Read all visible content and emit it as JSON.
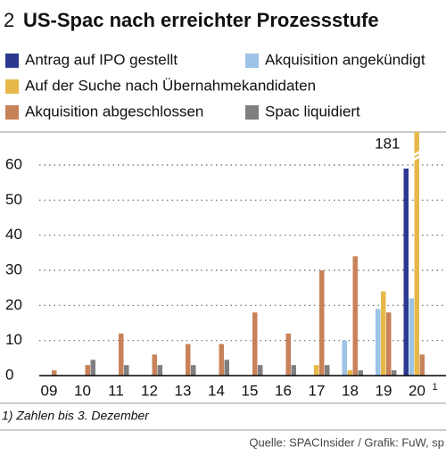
{
  "chart_data": {
    "type": "bar",
    "number": "2",
    "title": "US-Spac nach erreichter Prozessstufe",
    "categories": [
      "09",
      "10",
      "11",
      "12",
      "13",
      "14",
      "15",
      "16",
      "17",
      "18",
      "19",
      "20"
    ],
    "footnote_marker": "1",
    "series": [
      {
        "name": "Antrag auf IPO gestellt",
        "color": "#2b3990",
        "values": [
          0,
          0,
          0,
          0,
          0,
          0,
          0,
          0,
          0,
          0,
          0,
          59
        ]
      },
      {
        "name": "Akquisition angekündigt",
        "color": "#9dc3e6",
        "values": [
          0,
          0,
          0,
          0,
          0,
          0,
          0,
          0,
          0,
          10,
          19,
          22
        ]
      },
      {
        "name": "Auf der Suche nach Übernahmekandidaten",
        "color": "#e6b84a",
        "values": [
          0,
          0,
          0,
          0,
          0,
          0,
          0,
          0,
          3,
          1.5,
          24,
          181
        ]
      },
      {
        "name": "Akquisition abgeschlossen",
        "color": "#c8825a",
        "values": [
          1.5,
          3,
          12,
          6,
          9,
          9,
          18,
          12,
          30,
          34,
          18,
          6
        ]
      },
      {
        "name": "Spac liquidiert",
        "color": "#7f7f7f",
        "values": [
          0,
          4.5,
          3,
          3,
          3,
          4.5,
          3,
          3,
          3,
          1.5,
          1.5,
          0
        ]
      }
    ],
    "ylim": [
      0,
      60
    ],
    "yticks": [
      0,
      10,
      20,
      30,
      40,
      50,
      60
    ],
    "grid": true,
    "y_break": true,
    "note": "1) Zahlen bis 3. Dezember",
    "source": "Quelle: SPACInsider / Grafik: FuW, sp"
  }
}
